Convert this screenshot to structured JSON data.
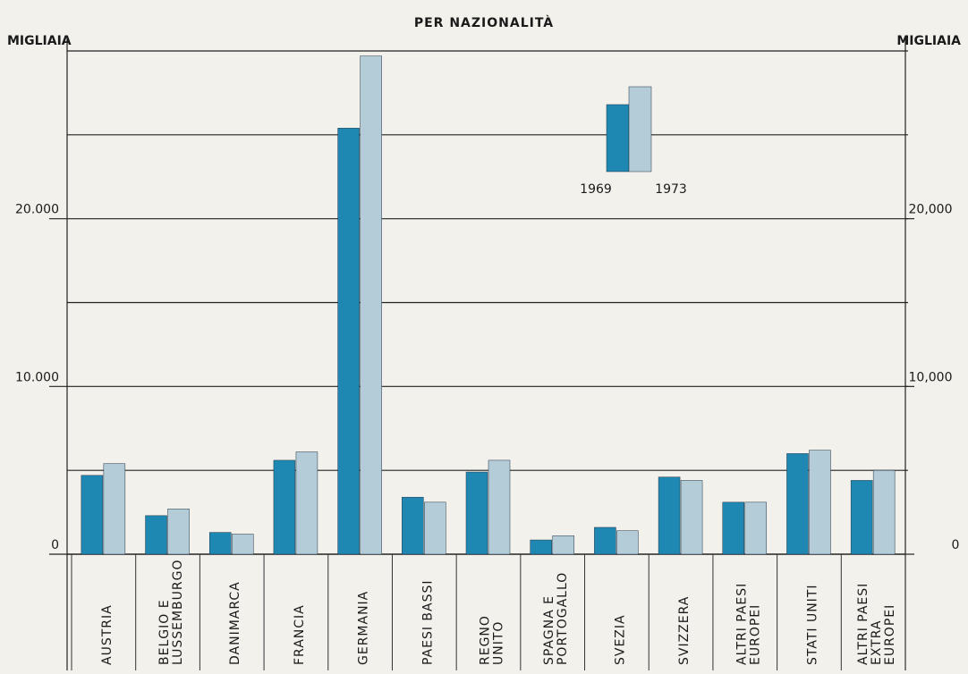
{
  "chart_data": {
    "type": "bar",
    "title": "PER NAZIONALITÀ",
    "y_label": "MIGLIAIA",
    "y2_label": "MIGLIAIA",
    "categories": [
      [
        "AUSTRIA"
      ],
      [
        "BELGIO E",
        "LUSSEMBURGO"
      ],
      [
        "DANIMARCA"
      ],
      [
        "FRANCIA"
      ],
      [
        "GERMANIA"
      ],
      [
        "PAESI BASSI"
      ],
      [
        "REGNO",
        "UNITO"
      ],
      [
        "SPAGNA E",
        "PORTOGALLO"
      ],
      [
        "SVEZIA"
      ],
      [
        "SVIZZERA"
      ],
      [
        "ALTRI PAESI",
        "EUROPEI"
      ],
      [
        "STATI UNITI"
      ],
      [
        "ALTRI PAESI",
        "EXTRA",
        "EUROPEI"
      ]
    ],
    "series": [
      {
        "name": "1969",
        "color": "#1f88b2",
        "values": [
          4700,
          2300,
          1300,
          5600,
          25400,
          3400,
          4900,
          850,
          1600,
          4600,
          3100,
          6000,
          4400
        ]
      },
      {
        "name": "1973",
        "color": "#b3ccd8",
        "values": [
          5400,
          2700,
          1200,
          6100,
          29700,
          3100,
          5600,
          1100,
          1400,
          4400,
          3100,
          6200,
          5000
        ]
      }
    ],
    "ylim": [
      0,
      30000
    ],
    "yticks": [
      0,
      {
        "value": 10000,
        "label": "10.000"
      },
      {
        "value": 20000,
        "label": "20.000"
      }
    ],
    "y2lim": [
      0,
      30000
    ],
    "y2ticks": [
      0,
      {
        "value": 10000,
        "label": "10,000"
      },
      {
        "value": 20000,
        "label": "20,000"
      }
    ],
    "ygrid": [
      5000,
      10000,
      15000,
      20000,
      25000,
      30000
    ],
    "grid": true,
    "legend": "upper right"
  }
}
